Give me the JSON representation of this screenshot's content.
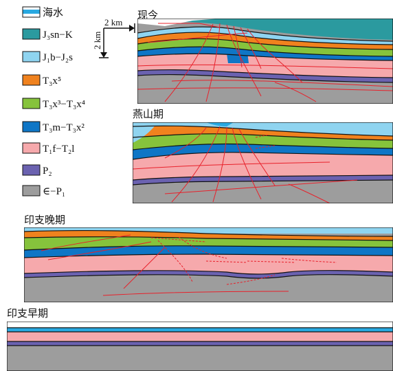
{
  "legend": [
    {
      "id": "seawater",
      "label": "海水",
      "color": "#29a9e1"
    },
    {
      "id": "j3sn_k",
      "label": "J₃sn−K",
      "color": "#2b9a9f"
    },
    {
      "id": "j1b_j2s",
      "label": "J₁b−J₂s",
      "color": "#8fd4f0"
    },
    {
      "id": "t3x5",
      "label": "T₃x⁵",
      "color": "#f0821e"
    },
    {
      "id": "t3x3_t3x4",
      "label": "T₃x³−T₃x⁴",
      "color": "#86c33c"
    },
    {
      "id": "t3m_t3x2",
      "label": "T₃m−T₃x²",
      "color": "#0f76c6"
    },
    {
      "id": "t1f_t2l",
      "label": "T₁f−T₂l",
      "color": "#f6a9ac"
    },
    {
      "id": "p2",
      "label": "P₂",
      "color": "#6b62b0"
    },
    {
      "id": "cam_p1",
      "label": "∈−P₁",
      "color": "#9d9d9d"
    }
  ],
  "scale_bar": {
    "horizontal": "2 km",
    "vertical": "2 km"
  },
  "stages": [
    {
      "id": "present",
      "label": "现今"
    },
    {
      "id": "yanshan",
      "label": "燕山期"
    },
    {
      "id": "late_indosinian",
      "label": "印支晚期"
    },
    {
      "id": "early_indosinian",
      "label": "印支早期"
    }
  ],
  "colors": {
    "fault": "#e8202a",
    "boundary": "#111111"
  }
}
